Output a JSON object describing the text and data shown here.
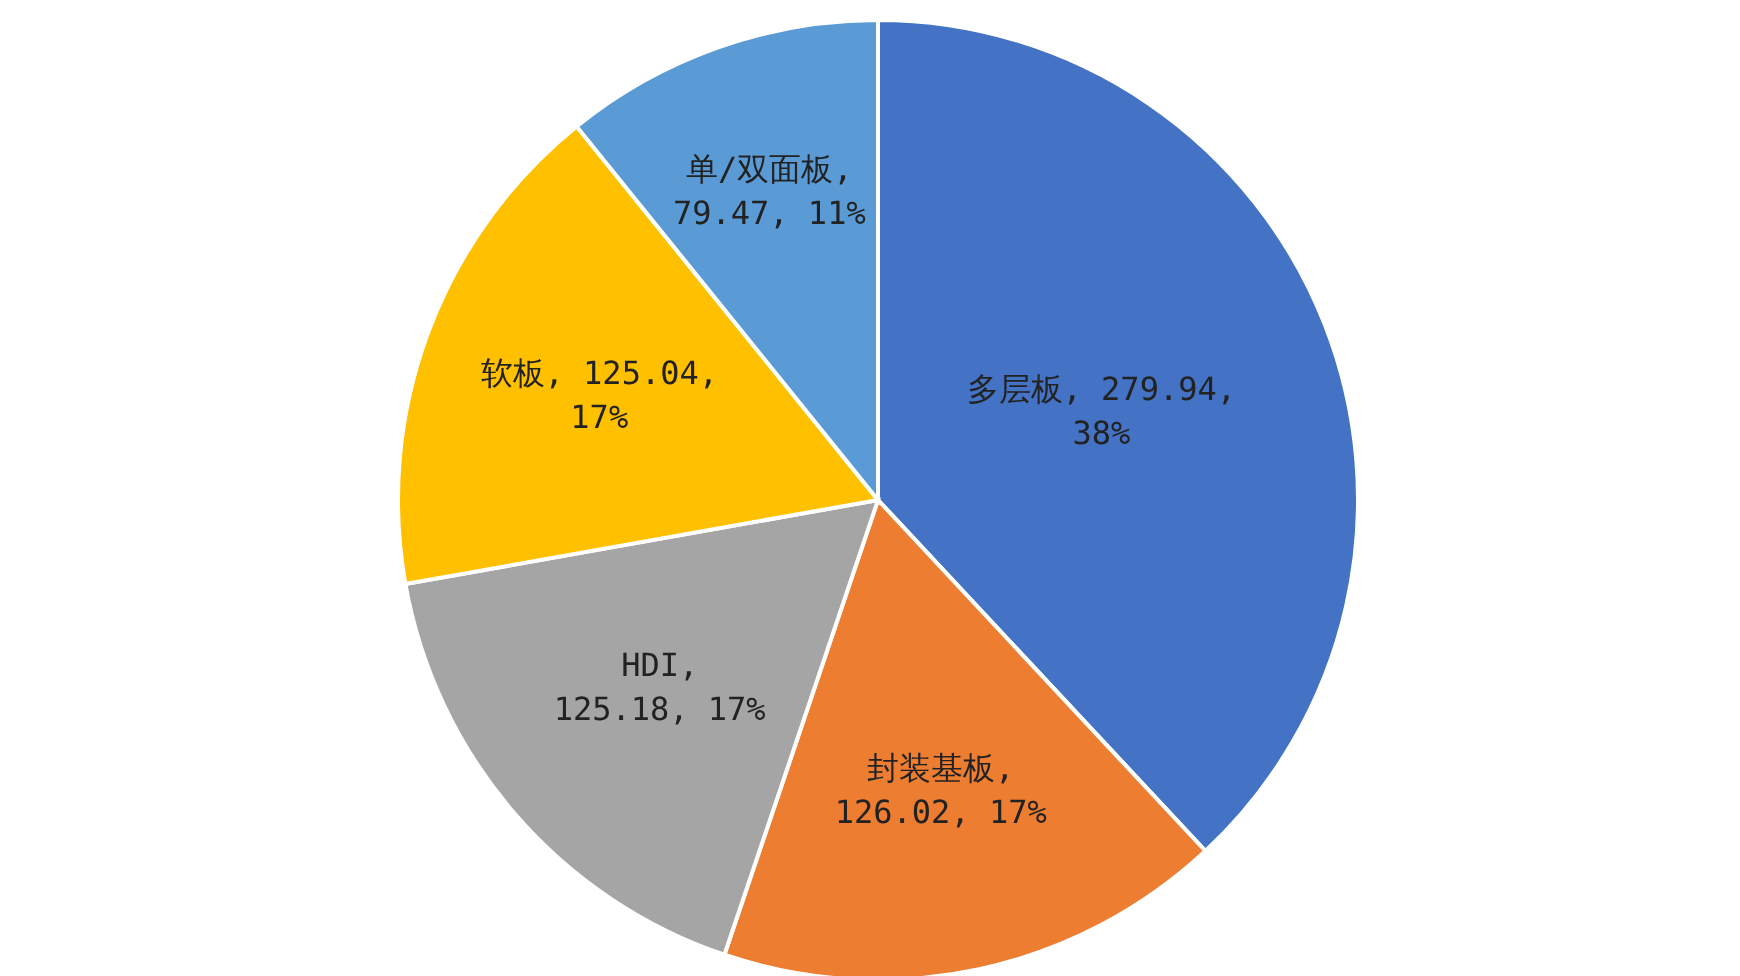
{
  "chart_data": {
    "type": "pie",
    "categories": [
      "多层板",
      "封装基板",
      "HDI",
      "软板",
      "单/双面板"
    ],
    "values": [
      279.94,
      126.02,
      125.18,
      125.04,
      79.47
    ],
    "colors": [
      "#4472c4",
      "#ed7d31",
      "#a5a5a5",
      "#ffc000",
      "#5b9bd5"
    ],
    "value_labels": [
      ", 279.94, 38%",
      ", 126.02, 17%",
      ", 125.18, 17%",
      ", 125.04, 17%",
      ", 79.47, 11%"
    ],
    "legend": false
  }
}
